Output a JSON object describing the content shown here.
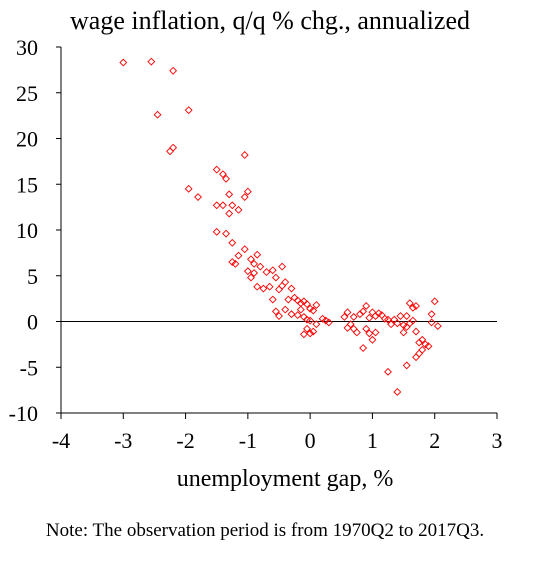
{
  "chart_data": {
    "type": "scatter",
    "title": "wage inflation, q/q % chg., annualized",
    "xlabel": "unemployment gap, %",
    "ylabel": "",
    "xlim": [
      -4,
      3
    ],
    "ylim": [
      -10,
      30
    ],
    "x_ticks": [
      "-4",
      "-3",
      "-2",
      "-1",
      "0",
      "1",
      "2",
      "3"
    ],
    "y_ticks": [
      "30",
      "25",
      "20",
      "15",
      "10",
      "5",
      "0",
      "-5",
      "-10"
    ],
    "zero_line": true,
    "grid": false,
    "marker": "diamond-open",
    "marker_color": "#ff0000",
    "points": [
      [
        -3.0,
        28.3
      ],
      [
        -2.55,
        28.4
      ],
      [
        -2.2,
        27.4
      ],
      [
        -2.45,
        22.6
      ],
      [
        -1.95,
        23.1
      ],
      [
        -2.2,
        19.0
      ],
      [
        -2.25,
        18.6
      ],
      [
        -1.05,
        18.2
      ],
      [
        -1.5,
        16.6
      ],
      [
        -1.4,
        16.1
      ],
      [
        -1.35,
        15.6
      ],
      [
        -1.0,
        14.2
      ],
      [
        -1.05,
        13.6
      ],
      [
        -1.3,
        13.9
      ],
      [
        -1.95,
        14.5
      ],
      [
        -1.8,
        13.6
      ],
      [
        -1.5,
        12.7
      ],
      [
        -1.4,
        12.7
      ],
      [
        -1.25,
        12.7
      ],
      [
        -1.15,
        12.2
      ],
      [
        -1.3,
        11.8
      ],
      [
        -1.5,
        9.8
      ],
      [
        -1.35,
        9.6
      ],
      [
        -1.25,
        8.6
      ],
      [
        -1.05,
        7.9
      ],
      [
        -1.15,
        7.2
      ],
      [
        -0.95,
        6.8
      ],
      [
        -0.9,
        6.3
      ],
      [
        -1.25,
        6.5
      ],
      [
        -1.2,
        6.3
      ],
      [
        -0.85,
        7.3
      ],
      [
        -0.8,
        6.0
      ],
      [
        -1.0,
        5.5
      ],
      [
        -0.95,
        4.8
      ],
      [
        -0.9,
        5.3
      ],
      [
        -0.7,
        5.4
      ],
      [
        -0.6,
        5.6
      ],
      [
        -0.45,
        6.0
      ],
      [
        -0.55,
        4.8
      ],
      [
        -0.4,
        4.3
      ],
      [
        -0.85,
        3.8
      ],
      [
        -0.75,
        3.6
      ],
      [
        -0.65,
        3.8
      ],
      [
        -0.5,
        3.5
      ],
      [
        -0.45,
        3.9
      ],
      [
        -0.3,
        3.6
      ],
      [
        -0.6,
        2.4
      ],
      [
        -0.35,
        2.4
      ],
      [
        -0.25,
        2.6
      ],
      [
        -0.2,
        2.3
      ],
      [
        -0.15,
        2.0
      ],
      [
        -0.1,
        2.2
      ],
      [
        -0.05,
        1.9
      ],
      [
        0.0,
        1.4
      ],
      [
        0.05,
        1.2
      ],
      [
        0.1,
        1.8
      ],
      [
        -0.4,
        1.3
      ],
      [
        -0.3,
        0.8
      ],
      [
        -0.2,
        0.7
      ],
      [
        -0.1,
        0.5
      ],
      [
        -0.05,
        0.2
      ],
      [
        0.0,
        0.1
      ],
      [
        -0.5,
        0.6
      ],
      [
        -0.55,
        1.1
      ],
      [
        -0.15,
        1.3
      ],
      [
        0.2,
        0.3
      ],
      [
        0.25,
        0.1
      ],
      [
        0.3,
        -0.1
      ],
      [
        -0.05,
        -0.8
      ],
      [
        0.05,
        -1.1
      ],
      [
        -0.1,
        -1.4
      ],
      [
        0.0,
        -1.3
      ],
      [
        0.1,
        -0.3
      ],
      [
        0.55,
        0.5
      ],
      [
        0.6,
        1.0
      ],
      [
        0.7,
        0.5
      ],
      [
        0.8,
        0.8
      ],
      [
        0.85,
        1.1
      ],
      [
        0.9,
        1.7
      ],
      [
        0.95,
        0.4
      ],
      [
        1.0,
        1.0
      ],
      [
        1.05,
        0.6
      ],
      [
        1.1,
        0.9
      ],
      [
        1.15,
        0.7
      ],
      [
        0.65,
        -0.3
      ],
      [
        0.7,
        -0.8
      ],
      [
        0.75,
        -1.2
      ],
      [
        0.9,
        -0.8
      ],
      [
        0.95,
        -1.3
      ],
      [
        1.0,
        -2.0
      ],
      [
        1.05,
        -1.2
      ],
      [
        0.85,
        -2.9
      ],
      [
        0.6,
        -0.7
      ],
      [
        1.2,
        0.3
      ],
      [
        1.25,
        0.2
      ],
      [
        1.3,
        -0.3
      ],
      [
        1.35,
        0.2
      ],
      [
        1.4,
        -0.2
      ],
      [
        1.45,
        0.6
      ],
      [
        1.5,
        -0.4
      ],
      [
        1.55,
        -0.6
      ],
      [
        1.6,
        -0.2
      ],
      [
        1.65,
        0.1
      ],
      [
        1.6,
        2.0
      ],
      [
        1.65,
        1.5
      ],
      [
        1.7,
        1.7
      ],
      [
        1.55,
        0.6
      ],
      [
        1.7,
        -1.1
      ],
      [
        1.75,
        -2.3
      ],
      [
        1.8,
        -2.0
      ],
      [
        1.85,
        -2.5
      ],
      [
        1.9,
        -2.7
      ],
      [
        1.75,
        -3.5
      ],
      [
        1.8,
        -3.1
      ],
      [
        1.7,
        -3.9
      ],
      [
        1.55,
        -4.8
      ],
      [
        1.25,
        -5.5
      ],
      [
        1.4,
        -7.7
      ],
      [
        1.95,
        0.8
      ],
      [
        2.0,
        2.2
      ],
      [
        2.05,
        -0.5
      ],
      [
        1.95,
        -0.1
      ],
      [
        1.5,
        -1.2
      ]
    ]
  },
  "note": "Note: The observation period is from 1970Q2 to 2017Q3."
}
